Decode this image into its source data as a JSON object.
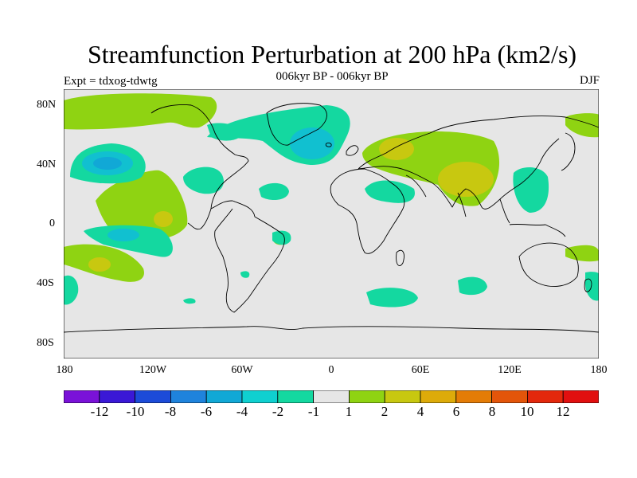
{
  "header": {
    "title": "Streamfunction Perturbation at 200 hPa (km2/s)",
    "subtitle": "006kyr BP - 006kyr BP",
    "left_label": "Expt = tdxog-tdwtg",
    "right_label": "DJF"
  },
  "axes": {
    "lat_labels": [
      "80N",
      "40N",
      "0",
      "40S",
      "80S"
    ],
    "lon_labels": [
      "180",
      "120W",
      "60W",
      "0",
      "60E",
      "120E",
      "180"
    ]
  },
  "colorbar": {
    "colors": [
      "#7a12d8",
      "#3a18d6",
      "#1c4bd8",
      "#1f83dc",
      "#11a8d6",
      "#0fd0d0",
      "#14d8a0",
      "#e6e6e6",
      "#8fd312",
      "#c8c810",
      "#ddab0a",
      "#e47c06",
      "#e3550a",
      "#e3280c",
      "#e10f0f"
    ],
    "labels": [
      "-12",
      "-10",
      "-8",
      "-6",
      "-4",
      "-2",
      "-1",
      "1",
      "2",
      "4",
      "6",
      "8",
      "10",
      "12"
    ]
  },
  "map": {
    "background": "#e6e6e6",
    "colors": {
      "pos1": "#8fd312",
      "pos2": "#c8c810",
      "neg1": "#14d8a0",
      "neg2": "#11c0d0",
      "neg3": "#11a8d6"
    }
  }
}
